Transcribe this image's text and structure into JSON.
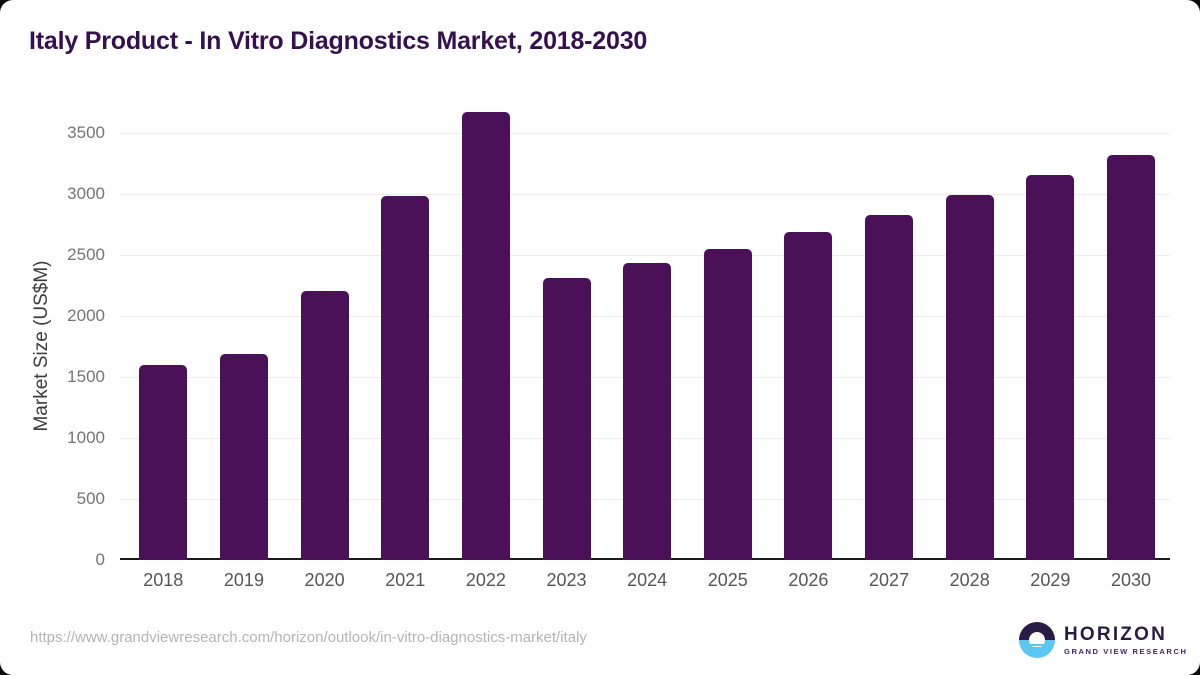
{
  "title": "Italy Product - In Vitro Diagnostics Market, 2018-2030",
  "colors": {
    "bar": "#4a1058",
    "title_text": "#35104f",
    "axis_line": "#1b1b1b",
    "gridline": "#ececec",
    "y_tick_text": "#757575",
    "x_tick_text": "#565656",
    "url_text": "#b4b4b4",
    "logo_purple": "#2a1b45",
    "logo_blue": "#5bc8f3"
  },
  "footer": {
    "source_url": "https://www.grandviewresearch.com/horizon/outlook/in-vitro-diagnostics-market/italy",
    "logo_title": "HORIZON",
    "logo_subtitle": "GRAND VIEW RESEARCH"
  },
  "chart_data": {
    "type": "bar",
    "title": "Italy Product - In Vitro Diagnostics Market, 2018-2030",
    "xlabel": "",
    "ylabel": "Market Size (US$M)",
    "categories": [
      "2018",
      "2019",
      "2020",
      "2021",
      "2022",
      "2023",
      "2024",
      "2025",
      "2026",
      "2027",
      "2028",
      "2029",
      "2030"
    ],
    "values": [
      1600,
      1690,
      2200,
      2985,
      3670,
      2310,
      2430,
      2550,
      2685,
      2830,
      2990,
      3150,
      3320
    ],
    "ylim": [
      0,
      3500
    ],
    "yticks": [
      0,
      500,
      1000,
      1500,
      2000,
      2500,
      3000,
      3500
    ],
    "grid": true,
    "legend": false
  }
}
